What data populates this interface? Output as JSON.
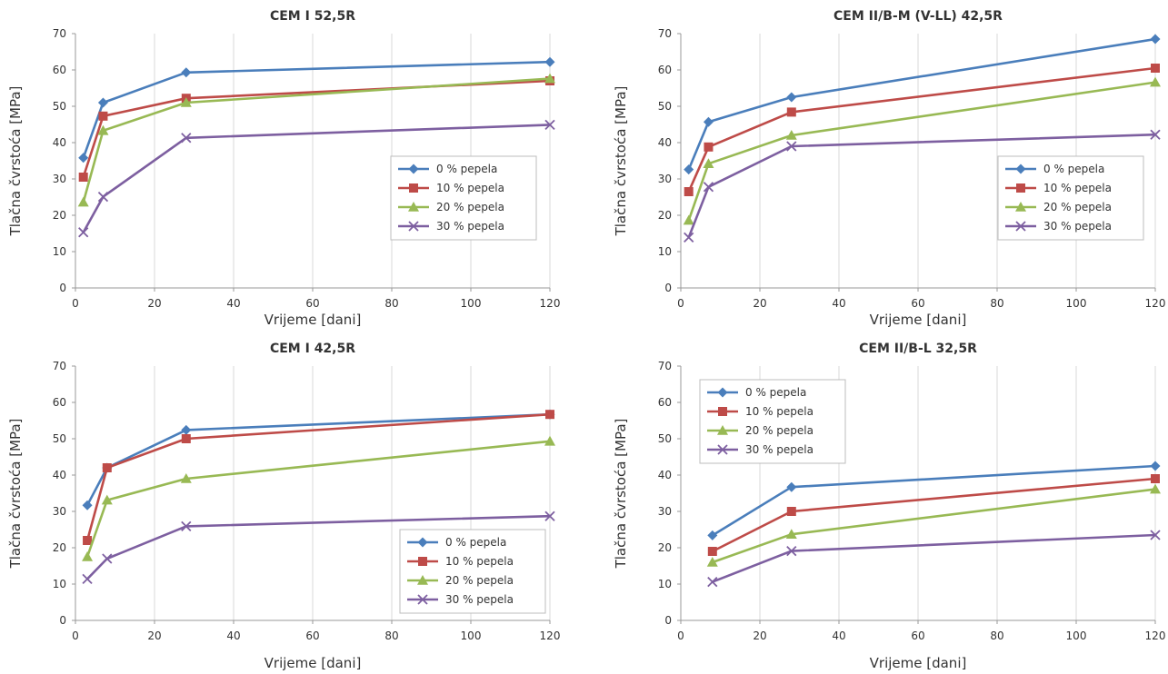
{
  "chart_data": [
    {
      "type": "line",
      "title": "CEM I 52,5R",
      "xlabel": "Vrijeme [dani]",
      "ylabel": "Tlačna čvrstoća [MPa]",
      "xlim": [
        0,
        120
      ],
      "ylim": [
        0,
        70
      ],
      "xticks": [
        0,
        20,
        40,
        60,
        80,
        100,
        120
      ],
      "yticks": [
        0,
        10,
        20,
        30,
        40,
        50,
        60,
        70
      ],
      "grid": "vertical",
      "legend": "right",
      "series": [
        {
          "name": "0 % pepela",
          "color": "#4a7ebb",
          "marker": "diamond",
          "x": [
            2,
            7,
            28,
            120
          ],
          "y": [
            35.8,
            51.0,
            59.3,
            62.2
          ]
        },
        {
          "name": "10 % pepela",
          "color": "#be4b48",
          "marker": "square",
          "x": [
            2,
            7,
            28,
            120
          ],
          "y": [
            30.5,
            47.3,
            52.2,
            57.0
          ]
        },
        {
          "name": "20 % pepela",
          "color": "#98b954",
          "marker": "triangle",
          "x": [
            2,
            7,
            28,
            120
          ],
          "y": [
            23.6,
            43.3,
            51.0,
            57.6
          ]
        },
        {
          "name": "30 % pepela",
          "color": "#7d5fa0",
          "marker": "x",
          "x": [
            2,
            7,
            28,
            120
          ],
          "y": [
            15.3,
            25.1,
            41.3,
            44.9
          ]
        }
      ]
    },
    {
      "type": "line",
      "title": "CEM II/B-M (V-LL) 42,5R",
      "xlabel": "Vrijeme [dani]",
      "ylabel": "Tlačna čvrstoća [MPa]",
      "xlim": [
        0,
        120
      ],
      "ylim": [
        0,
        70
      ],
      "xticks": [
        0,
        20,
        40,
        60,
        80,
        100,
        120
      ],
      "yticks": [
        0,
        10,
        20,
        30,
        40,
        50,
        60,
        70
      ],
      "grid": "vertical",
      "legend": "right",
      "series": [
        {
          "name": "0 % pepela",
          "color": "#4a7ebb",
          "marker": "diamond",
          "x": [
            2,
            7,
            28,
            120
          ],
          "y": [
            32.6,
            45.7,
            52.5,
            68.5
          ]
        },
        {
          "name": "10 % pepela",
          "color": "#be4b48",
          "marker": "square",
          "x": [
            2,
            7,
            28,
            120
          ],
          "y": [
            26.5,
            38.8,
            48.4,
            60.5
          ]
        },
        {
          "name": "20 % pepela",
          "color": "#98b954",
          "marker": "triangle",
          "x": [
            2,
            7,
            28,
            120
          ],
          "y": [
            18.6,
            34.2,
            42.0,
            56.6
          ]
        },
        {
          "name": "30 % pepela",
          "color": "#7d5fa0",
          "marker": "x",
          "x": [
            2,
            7,
            28,
            120
          ],
          "y": [
            13.9,
            27.8,
            39.0,
            42.2
          ]
        }
      ]
    },
    {
      "type": "line",
      "title": "CEM I 42,5R",
      "xlabel": "Vrijeme [dani]",
      "ylabel": "Tlačna čvrstoća [MPa]",
      "xlim": [
        0,
        120
      ],
      "ylim": [
        0,
        70
      ],
      "xticks": [
        0,
        20,
        40,
        60,
        80,
        100,
        120
      ],
      "yticks": [
        0,
        10,
        20,
        30,
        40,
        50,
        60,
        70
      ],
      "grid": "vertical",
      "legend": "bottom-right",
      "series": [
        {
          "name": "0 % pepela",
          "color": "#4a7ebb",
          "marker": "diamond",
          "x": [
            3,
            8,
            28,
            120
          ],
          "y": [
            31.7,
            42.0,
            52.4,
            56.7
          ]
        },
        {
          "name": "10 % pepela",
          "color": "#be4b48",
          "marker": "square",
          "x": [
            3,
            8,
            28,
            120
          ],
          "y": [
            22.0,
            42.0,
            50.0,
            56.7
          ]
        },
        {
          "name": "20 % pepela",
          "color": "#98b954",
          "marker": "triangle",
          "x": [
            3,
            8,
            28,
            120
          ],
          "y": [
            17.5,
            33.1,
            39.0,
            49.3
          ]
        },
        {
          "name": "30 % pepela",
          "color": "#7d5fa0",
          "marker": "x",
          "x": [
            3,
            8,
            28,
            120
          ],
          "y": [
            11.4,
            17.0,
            25.9,
            28.7
          ]
        }
      ]
    },
    {
      "type": "line",
      "title": "CEM II/B-L 32,5R",
      "xlabel": "Vrijeme [dani]",
      "ylabel": "Tlačna čvrstoća [MPa]",
      "xlim": [
        0,
        120
      ],
      "ylim": [
        0,
        70
      ],
      "xticks": [
        0,
        20,
        40,
        60,
        80,
        100,
        120
      ],
      "yticks": [
        0,
        10,
        20,
        30,
        40,
        50,
        60,
        70
      ],
      "grid": "vertical",
      "legend": "top-left",
      "series": [
        {
          "name": "0 % pepela",
          "color": "#4a7ebb",
          "marker": "diamond",
          "x": [
            8,
            28,
            120
          ],
          "y": [
            23.4,
            36.7,
            42.5
          ]
        },
        {
          "name": "10 % pepela",
          "color": "#be4b48",
          "marker": "square",
          "x": [
            8,
            28,
            120
          ],
          "y": [
            19.0,
            30.0,
            39.0
          ]
        },
        {
          "name": "20 % pepela",
          "color": "#98b954",
          "marker": "triangle",
          "x": [
            8,
            28,
            120
          ],
          "y": [
            16.0,
            23.7,
            36.1
          ]
        },
        {
          "name": "30 % pepela",
          "color": "#7d5fa0",
          "marker": "x",
          "x": [
            8,
            28,
            120
          ],
          "y": [
            10.6,
            19.1,
            23.5
          ]
        }
      ]
    }
  ]
}
